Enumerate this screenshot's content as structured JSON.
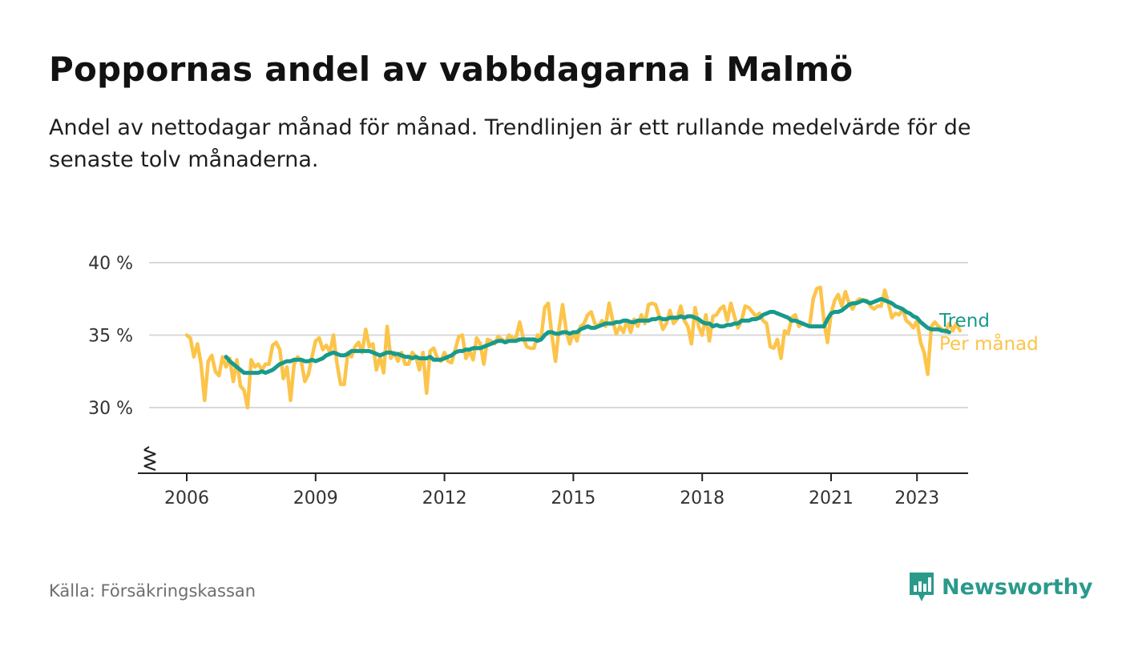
{
  "header": {
    "title": "Poppornas andel av vabbdagarna i Malmö",
    "subtitle": "Andel av nettodagar månad för månad. Trendlinjen är ett rullande medelvärde för de senaste tolv månaderna."
  },
  "footer": {
    "source": "Källa: Försäkringskassan",
    "brand": "Newsworthy",
    "brand_icon": "newsworthy-logo-icon"
  },
  "colors": {
    "trend": "#179a8c",
    "monthly": "#fcc44a",
    "grid": "#d9d9d9",
    "axis": "#222222",
    "brand": "#2a9a8b"
  },
  "chart_data": {
    "type": "line",
    "ylim": [
      25.5,
      40
    ],
    "yticks": [
      30,
      35,
      40
    ],
    "ytick_labels": [
      "30 %",
      "35 %",
      "40 %"
    ],
    "x_start_year": 2006,
    "x_end_year": 2025,
    "xticks": [
      2006,
      2009,
      2012,
      2015,
      2018,
      2021,
      2023
    ],
    "xtick_labels": [
      "2006",
      "2009",
      "2012",
      "2015",
      "2018",
      "2021",
      "2023"
    ],
    "grid": true,
    "axis_break": true,
    "series": [
      {
        "name": "Per månad",
        "key": "monthly",
        "x_start": "2006-01",
        "values": [
          35.0,
          34.8,
          33.5,
          34.4,
          33.0,
          30.5,
          33.2,
          33.6,
          32.5,
          32.2,
          33.5,
          32.8,
          33.4,
          31.8,
          33.3,
          31.5,
          31.2,
          30.0,
          33.3,
          32.8,
          33.0,
          32.6,
          33.0,
          33.0,
          34.3,
          34.5,
          34.0,
          32.0,
          32.8,
          30.5,
          33.0,
          33.5,
          33.2,
          31.8,
          32.3,
          33.5,
          34.6,
          34.8,
          34.0,
          34.3,
          33.8,
          35.0,
          33.0,
          31.6,
          31.6,
          33.8,
          33.5,
          34.2,
          34.5,
          33.8,
          35.4,
          34.2,
          34.4,
          32.6,
          33.5,
          32.4,
          35.6,
          33.4,
          33.8,
          33.2,
          33.8,
          33.0,
          33.0,
          33.8,
          33.5,
          32.6,
          33.8,
          31.0,
          33.9,
          34.1,
          33.4,
          33.2,
          33.8,
          33.2,
          33.1,
          34.0,
          34.9,
          35.0,
          33.4,
          33.9,
          33.3,
          34.8,
          34.4,
          33.0,
          34.7,
          34.6,
          34.4,
          34.9,
          34.7,
          34.5,
          35.0,
          34.8,
          34.8,
          35.9,
          34.8,
          34.2,
          34.1,
          34.1,
          35.0,
          34.8,
          36.9,
          37.2,
          35.0,
          33.2,
          35.4,
          37.1,
          35.3,
          34.4,
          35.2,
          34.6,
          35.6,
          35.8,
          36.4,
          36.6,
          35.8,
          35.6,
          36.0,
          35.6,
          37.2,
          36.0,
          35.1,
          35.6,
          35.2,
          36.0,
          35.2,
          36.1,
          35.6,
          36.4,
          35.8,
          37.1,
          37.2,
          37.1,
          36.3,
          35.4,
          35.8,
          36.7,
          35.8,
          36.1,
          37.0,
          36.0,
          35.6,
          34.4,
          36.9,
          35.6,
          35.0,
          36.4,
          34.6,
          36.3,
          36.4,
          36.8,
          37.0,
          36.0,
          37.2,
          36.3,
          35.5,
          36.0,
          37.0,
          36.9,
          36.6,
          36.3,
          36.5,
          36.0,
          35.8,
          34.2,
          34.1,
          34.7,
          33.4,
          35.3,
          35.1,
          36.2,
          36.4,
          35.6,
          35.8,
          35.7,
          35.6,
          37.5,
          38.2,
          38.3,
          36.0,
          34.5,
          36.5,
          37.4,
          37.8,
          37.0,
          38.0,
          37.2,
          36.8,
          37.3,
          37.5,
          37.4,
          37.4,
          37.0,
          36.8,
          37.0,
          37.0,
          38.1,
          37.2,
          36.2,
          36.5,
          36.4,
          36.8,
          36.0,
          35.8,
          35.5,
          36.0,
          34.5,
          33.8,
          32.3,
          35.6,
          35.9,
          35.6,
          35.4,
          35.2,
          35.8,
          35.3,
          35.8,
          35.3
        ]
      },
      {
        "name": "Trend",
        "key": "trend",
        "x_start": "2006-12",
        "values": [
          33.5,
          33.2,
          33.0,
          32.8,
          32.6,
          32.4,
          32.4,
          32.4,
          32.4,
          32.4,
          32.5,
          32.4,
          32.5,
          32.6,
          32.8,
          33.0,
          33.1,
          33.2,
          33.2,
          33.3,
          33.3,
          33.3,
          33.2,
          33.2,
          33.3,
          33.2,
          33.3,
          33.4,
          33.6,
          33.7,
          33.8,
          33.7,
          33.6,
          33.6,
          33.7,
          33.9,
          33.9,
          33.9,
          33.9,
          33.9,
          33.9,
          33.8,
          33.7,
          33.6,
          33.7,
          33.8,
          33.8,
          33.7,
          33.7,
          33.6,
          33.5,
          33.5,
          33.4,
          33.5,
          33.4,
          33.4,
          33.4,
          33.5,
          33.3,
          33.3,
          33.3,
          33.4,
          33.5,
          33.6,
          33.8,
          33.9,
          33.9,
          34.0,
          34.0,
          34.1,
          34.1,
          34.1,
          34.2,
          34.3,
          34.4,
          34.5,
          34.6,
          34.6,
          34.5,
          34.6,
          34.6,
          34.6,
          34.7,
          34.7,
          34.7,
          34.7,
          34.7,
          34.6,
          34.7,
          35.0,
          35.2,
          35.2,
          35.1,
          35.1,
          35.2,
          35.2,
          35.1,
          35.2,
          35.2,
          35.4,
          35.5,
          35.6,
          35.5,
          35.5,
          35.6,
          35.7,
          35.8,
          35.8,
          35.8,
          35.9,
          35.9,
          36.0,
          36.0,
          35.9,
          35.9,
          36.0,
          36.0,
          36.0,
          36.0,
          36.1,
          36.1,
          36.2,
          36.1,
          36.1,
          36.2,
          36.2,
          36.2,
          36.3,
          36.2,
          36.3,
          36.3,
          36.2,
          36.1,
          35.9,
          35.8,
          35.8,
          35.6,
          35.7,
          35.6,
          35.6,
          35.7,
          35.7,
          35.8,
          35.8,
          36.0,
          36.0,
          36.0,
          36.1,
          36.1,
          36.2,
          36.4,
          36.5,
          36.6,
          36.6,
          36.5,
          36.4,
          36.3,
          36.2,
          36.0,
          36.0,
          35.9,
          35.8,
          35.7,
          35.6,
          35.6,
          35.6,
          35.6,
          35.6,
          36.1,
          36.5,
          36.6,
          36.6,
          36.7,
          36.9,
          37.1,
          37.2,
          37.2,
          37.3,
          37.4,
          37.3,
          37.2,
          37.3,
          37.4,
          37.5,
          37.4,
          37.3,
          37.2,
          37.0,
          36.9,
          36.8,
          36.6,
          36.5,
          36.3,
          36.2,
          35.9,
          35.7,
          35.5,
          35.4,
          35.4,
          35.4,
          35.3,
          35.3,
          35.2
        ]
      }
    ]
  }
}
